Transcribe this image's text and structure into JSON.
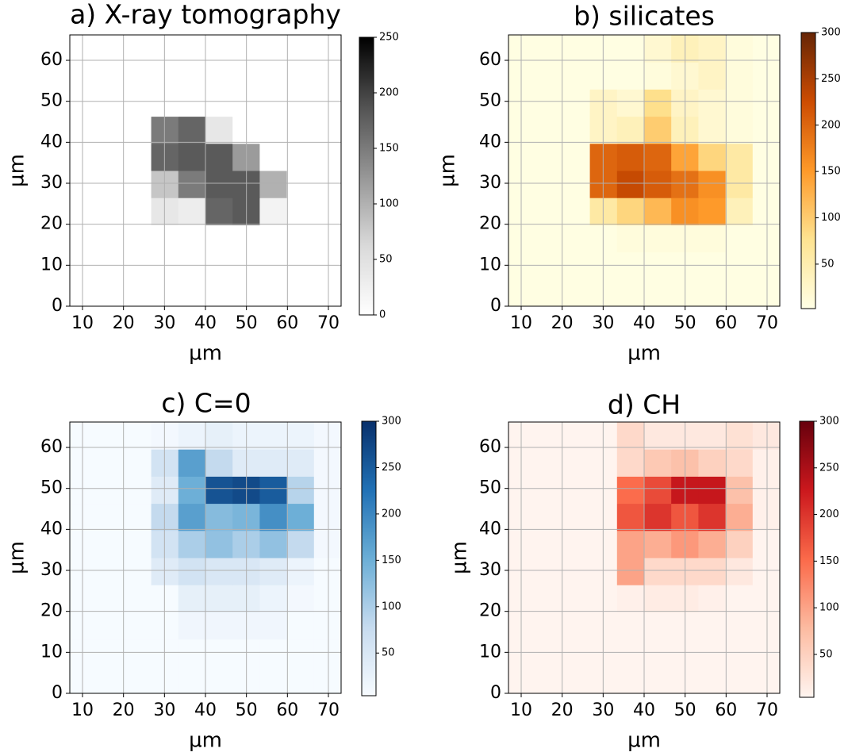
{
  "chart_data": [
    {
      "type": "heatmap",
      "title": "a) X-ray tomography",
      "xlabel": "µm",
      "ylabel": "µm",
      "xlim": [
        6.9,
        73.1
      ],
      "ylim": [
        0,
        66.2
      ],
      "xticks": [
        10,
        20,
        30,
        40,
        50,
        60,
        70
      ],
      "yticks": [
        0,
        10,
        20,
        30,
        40,
        50,
        60
      ],
      "grid": true,
      "cmap": "Greys",
      "clim": [
        0,
        250
      ],
      "cticks": [
        0,
        50,
        100,
        150,
        200,
        250
      ],
      "z": [
        [
          0,
          0,
          0,
          0,
          0,
          0,
          0,
          0,
          0,
          0
        ],
        [
          0,
          0,
          0,
          0,
          0,
          0,
          0,
          0,
          0,
          0
        ],
        [
          0,
          0,
          0,
          0,
          0,
          0,
          0,
          0,
          0,
          0
        ],
        [
          0,
          0,
          0,
          40,
          30,
          170,
          180,
          20,
          0,
          0
        ],
        [
          0,
          0,
          0,
          80,
          150,
          180,
          180,
          100,
          0,
          0
        ],
        [
          0,
          0,
          0,
          170,
          180,
          180,
          120,
          0,
          0,
          0
        ],
        [
          0,
          0,
          0,
          150,
          170,
          40,
          0,
          0,
          0,
          0
        ],
        [
          0,
          0,
          0,
          0,
          0,
          0,
          0,
          0,
          0,
          0
        ],
        [
          0,
          0,
          0,
          0,
          0,
          0,
          0,
          0,
          0,
          0
        ],
        [
          0,
          0,
          0,
          0,
          0,
          0,
          0,
          0,
          0,
          0
        ]
      ]
    },
    {
      "type": "heatmap",
      "title": "b) silicates",
      "xlabel": "µm",
      "ylabel": "µm",
      "xlim": [
        6.9,
        73.1
      ],
      "ylim": [
        0,
        66.2
      ],
      "xticks": [
        10,
        20,
        30,
        40,
        50,
        60,
        70
      ],
      "yticks": [
        0,
        10,
        20,
        30,
        40,
        50,
        60
      ],
      "grid": true,
      "cmap": "YlOrBr",
      "clim": [
        2,
        300
      ],
      "cticks": [
        50,
        100,
        150,
        200,
        250,
        300
      ],
      "z": [
        [
          5,
          5,
          5,
          5,
          5,
          5,
          5,
          5,
          5,
          5
        ],
        [
          5,
          5,
          5,
          5,
          5,
          5,
          5,
          5,
          5,
          5
        ],
        [
          5,
          5,
          5,
          5,
          10,
          10,
          10,
          10,
          5,
          5
        ],
        [
          5,
          5,
          5,
          60,
          90,
          120,
          160,
          150,
          40,
          5
        ],
        [
          5,
          5,
          5,
          200,
          230,
          210,
          190,
          160,
          60,
          5
        ],
        [
          5,
          5,
          5,
          200,
          210,
          200,
          140,
          90,
          60,
          5
        ],
        [
          5,
          5,
          5,
          30,
          40,
          100,
          40,
          20,
          10,
          5
        ],
        [
          5,
          5,
          5,
          30,
          20,
          80,
          30,
          20,
          10,
          5
        ],
        [
          5,
          5,
          5,
          5,
          5,
          10,
          20,
          30,
          10,
          5
        ],
        [
          5,
          5,
          5,
          5,
          5,
          20,
          40,
          30,
          10,
          5
        ]
      ]
    },
    {
      "type": "heatmap",
      "title": "c) C=0",
      "xlabel": "µm",
      "ylabel": "µm",
      "xlim": [
        6.9,
        73.1
      ],
      "ylim": [
        0,
        66.2
      ],
      "xticks": [
        10,
        20,
        30,
        40,
        50,
        60,
        70
      ],
      "yticks": [
        0,
        10,
        20,
        30,
        40,
        50,
        60
      ],
      "grid": true,
      "cmap": "Blues",
      "clim": [
        4,
        300
      ],
      "cticks": [
        50,
        100,
        150,
        200,
        250,
        300
      ],
      "z": [
        [
          5,
          5,
          5,
          5,
          5,
          5,
          5,
          5,
          5,
          5
        ],
        [
          5,
          5,
          5,
          5,
          5,
          5,
          5,
          5,
          5,
          5
        ],
        [
          5,
          5,
          5,
          5,
          15,
          15,
          15,
          15,
          5,
          5
        ],
        [
          5,
          5,
          5,
          5,
          30,
          30,
          30,
          20,
          10,
          5
        ],
        [
          5,
          5,
          5,
          40,
          60,
          50,
          50,
          40,
          20,
          5
        ],
        [
          5,
          5,
          5,
          60,
          100,
          120,
          100,
          120,
          80,
          10
        ],
        [
          5,
          5,
          5,
          80,
          170,
          130,
          140,
          190,
          150,
          10
        ],
        [
          5,
          5,
          5,
          40,
          150,
          260,
          270,
          250,
          90,
          10
        ],
        [
          5,
          5,
          5,
          60,
          170,
          80,
          40,
          40,
          40,
          10
        ],
        [
          5,
          5,
          5,
          10,
          20,
          30,
          20,
          20,
          20,
          10
        ]
      ]
    },
    {
      "type": "heatmap",
      "title": "d) CH",
      "xlabel": "µm",
      "ylabel": "µm",
      "xlim": [
        6.9,
        73.1
      ],
      "ylim": [
        0,
        66.2
      ],
      "xticks": [
        10,
        20,
        30,
        40,
        50,
        60,
        70
      ],
      "yticks": [
        0,
        10,
        20,
        30,
        40,
        50,
        60
      ],
      "grid": true,
      "cmap": "Reds",
      "clim": [
        4,
        300
      ],
      "cticks": [
        50,
        100,
        150,
        200,
        250,
        300
      ],
      "z": [
        [
          5,
          5,
          5,
          5,
          5,
          5,
          5,
          5,
          5,
          5
        ],
        [
          5,
          5,
          5,
          5,
          5,
          5,
          5,
          5,
          5,
          5
        ],
        [
          5,
          5,
          5,
          5,
          5,
          5,
          5,
          5,
          5,
          5
        ],
        [
          5,
          5,
          5,
          5,
          10,
          15,
          15,
          10,
          5,
          5
        ],
        [
          5,
          5,
          5,
          5,
          100,
          40,
          40,
          40,
          20,
          5
        ],
        [
          5,
          5,
          5,
          5,
          100,
          90,
          110,
          90,
          50,
          5
        ],
        [
          5,
          5,
          5,
          5,
          170,
          200,
          170,
          200,
          90,
          10
        ],
        [
          5,
          5,
          5,
          5,
          150,
          180,
          230,
          230,
          70,
          10
        ],
        [
          5,
          5,
          5,
          5,
          40,
          60,
          70,
          50,
          40,
          10
        ],
        [
          5,
          5,
          5,
          5,
          40,
          20,
          20,
          20,
          30,
          20
        ]
      ]
    }
  ]
}
